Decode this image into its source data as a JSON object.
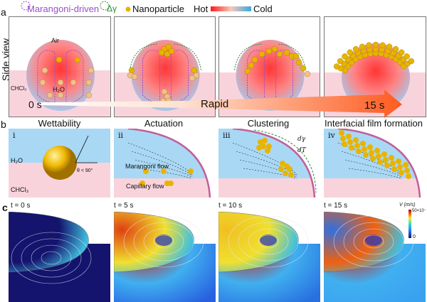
{
  "legend": {
    "marangoni": "Marangoni-driven",
    "delta_gamma": "Δγ",
    "nanoparticle": "Nanoparticle",
    "hot": "Hot",
    "cold": "Cold"
  },
  "colors": {
    "hot": "#ff1a1a",
    "cold": "#3aa8e0",
    "oil": "#f9d3dc",
    "water": "#a9d8f5",
    "particle": "#e8b400",
    "arrow": "#ff5a1f",
    "marangoni": "#9b4dca",
    "delta": "#2e8b3a"
  },
  "panel_a": {
    "label": "a",
    "side_label": "Side view",
    "air": "Air",
    "chcl3": "CHCl₃",
    "h2o": "H₂O",
    "start": "0 s",
    "middle": "Rapid",
    "end": "15 s"
  },
  "panel_b": {
    "label": "b",
    "titles": [
      "Wettability",
      "Actuation",
      "Clustering",
      "Interfacial film formation"
    ],
    "numerals": [
      "i",
      "ii",
      "iii",
      "iv"
    ],
    "h2o": "H₂O",
    "chcl3": "CHCl₃",
    "angle": "θ < 90°",
    "marangoni_flow": "Marangoni flow",
    "capillary_flow": "Capillary flow",
    "dgamma": "dγ",
    "dT": "dT"
  },
  "panel_c": {
    "label": "c",
    "times": [
      "t = 0 s",
      "t = 5 s",
      "t = 10 s",
      "t = 15 s"
    ],
    "colorbar": {
      "title": "V (m/s)",
      "max": "50×10⁻",
      "min": "0"
    }
  }
}
